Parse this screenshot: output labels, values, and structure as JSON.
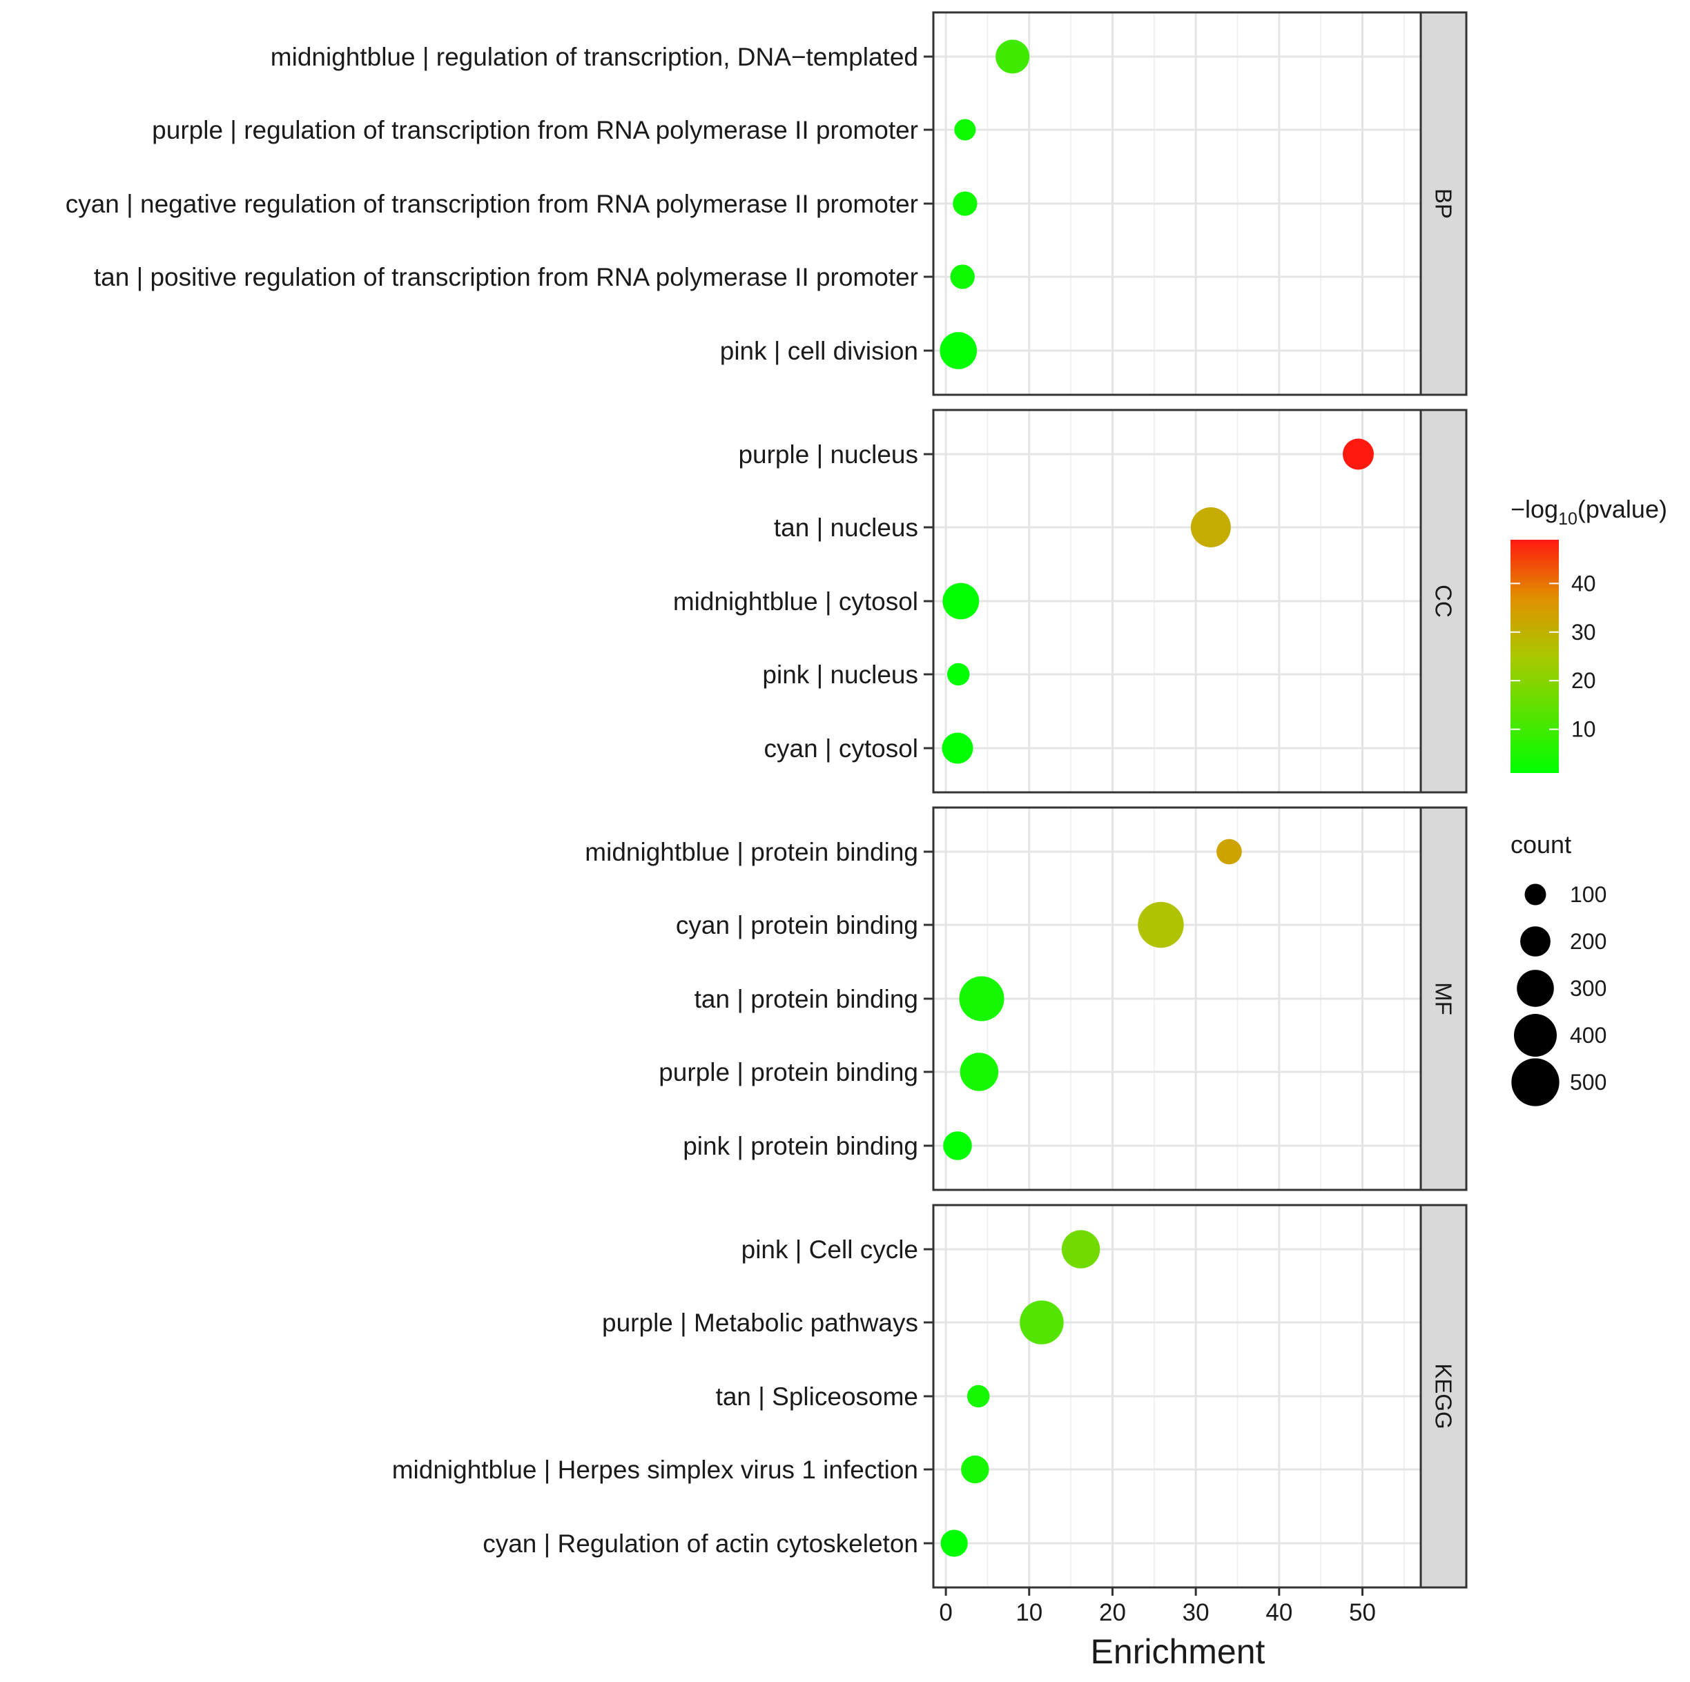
{
  "chart_data": {
    "type": "scatter",
    "xlabel": "Enrichment",
    "ylabel": "",
    "xlim": [
      -1.5,
      57
    ],
    "xticks": [
      0,
      10,
      20,
      30,
      40,
      50
    ],
    "grid": true,
    "facets": [
      {
        "name": "BP",
        "rows": [
          {
            "label": "midnightblue | regulation of transcription, DNA−templated",
            "enrichment": 8.0,
            "count": 250,
            "neg_log10_pvalue": 10
          },
          {
            "label": "purple | regulation of transcription from RNA polymerase II promoter",
            "enrichment": 2.3,
            "count": 100,
            "neg_log10_pvalue": 3
          },
          {
            "label": "cyan | negative regulation of transcription from RNA polymerase II promoter",
            "enrichment": 2.3,
            "count": 130,
            "neg_log10_pvalue": 3
          },
          {
            "label": "tan | positive regulation of transcription from RNA polymerase II promoter",
            "enrichment": 2.0,
            "count": 130,
            "neg_log10_pvalue": 3
          },
          {
            "label": "pink | cell division",
            "enrichment": 1.5,
            "count": 300,
            "neg_log10_pvalue": 1
          }
        ]
      },
      {
        "name": "CC",
        "rows": [
          {
            "label": "purple | nucleus",
            "enrichment": 49.5,
            "count": 210,
            "neg_log10_pvalue": 49
          },
          {
            "label": "tan | nucleus",
            "enrichment": 31.8,
            "count": 350,
            "neg_log10_pvalue": 31
          },
          {
            "label": "midnightblue | cytosol",
            "enrichment": 1.8,
            "count": 290,
            "neg_log10_pvalue": 1
          },
          {
            "label": "pink | nucleus",
            "enrichment": 1.5,
            "count": 110,
            "neg_log10_pvalue": 1
          },
          {
            "label": "cyan | cytosol",
            "enrichment": 1.4,
            "count": 210,
            "neg_log10_pvalue": 1
          }
        ]
      },
      {
        "name": "MF",
        "rows": [
          {
            "label": "midnightblue | protein binding",
            "enrichment": 34.0,
            "count": 140,
            "neg_log10_pvalue": 33
          },
          {
            "label": "cyan | protein binding",
            "enrichment": 25.8,
            "count": 460,
            "neg_log10_pvalue": 26
          },
          {
            "label": "tan | protein binding",
            "enrichment": 4.3,
            "count": 440,
            "neg_log10_pvalue": 4
          },
          {
            "label": "purple | protein binding",
            "enrichment": 4.0,
            "count": 320,
            "neg_log10_pvalue": 4
          },
          {
            "label": "pink | protein binding",
            "enrichment": 1.4,
            "count": 180,
            "neg_log10_pvalue": 1
          }
        ]
      },
      {
        "name": "KEGG",
        "rows": [
          {
            "label": "pink | Cell cycle",
            "enrichment": 16.2,
            "count": 320,
            "neg_log10_pvalue": 17
          },
          {
            "label": "purple | Metabolic pathways",
            "enrichment": 11.5,
            "count": 420,
            "neg_log10_pvalue": 13
          },
          {
            "label": "tan | Spliceosome",
            "enrichment": 3.9,
            "count": 110,
            "neg_log10_pvalue": 4
          },
          {
            "label": "midnightblue | Herpes simplex virus 1 infection",
            "enrichment": 3.5,
            "count": 170,
            "neg_log10_pvalue": 4
          },
          {
            "label": "cyan | Regulation of actin cytoskeleton",
            "enrichment": 1.0,
            "count": 160,
            "neg_log10_pvalue": 1
          }
        ]
      }
    ],
    "color_legend": {
      "title_prefix": "−log",
      "title_subscript": "10",
      "title_suffix": "(pvalue)",
      "ticks": [
        10,
        20,
        30,
        40
      ],
      "range": [
        1,
        49
      ],
      "low_color": "#00ff00",
      "high_color": "#ff0000"
    },
    "size_legend": {
      "title": "count",
      "values": [
        100,
        200,
        300,
        400,
        500
      ]
    }
  }
}
